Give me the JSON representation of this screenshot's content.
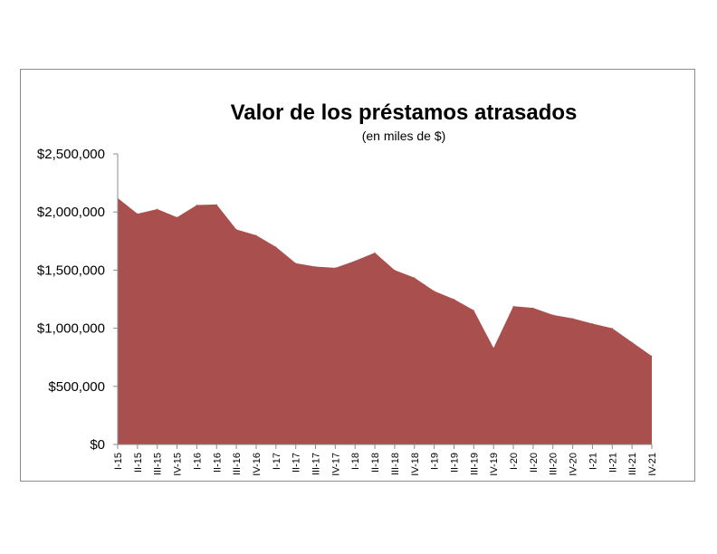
{
  "chart_data": {
    "type": "area",
    "title": "Valor de los préstamos atrasados",
    "subtitle": "(en miles de $)",
    "xlabel": "",
    "ylabel": "",
    "ylim": [
      0,
      2500000
    ],
    "y_ticks": [
      {
        "value": 0,
        "label": "$0"
      },
      {
        "value": 500000,
        "label": "$500,000"
      },
      {
        "value": 1000000,
        "label": "$1,000,000"
      },
      {
        "value": 1500000,
        "label": "$1,500,000"
      },
      {
        "value": 2000000,
        "label": "$2,000,000"
      },
      {
        "value": 2500000,
        "label": "$2,500,000"
      }
    ],
    "grid": false,
    "legend": "none",
    "color": "#a9504f",
    "categories": [
      "I-15",
      "II-15",
      "III-15",
      "IV-15",
      "I-16",
      "II-16",
      "III-16",
      "IV-16",
      "I-17",
      "II-17",
      "III-17",
      "IV-17",
      "I-18",
      "II-18",
      "III-18",
      "IV-18",
      "I-19",
      "II-19",
      "III-19",
      "IV-19",
      "I-20",
      "II-20",
      "III-20",
      "IV-20",
      "I-21",
      "II-21",
      "III-21",
      "IV-21"
    ],
    "values": [
      2120000,
      1985000,
      2025000,
      1955000,
      2060000,
      2065000,
      1850000,
      1800000,
      1700000,
      1560000,
      1530000,
      1520000,
      1580000,
      1650000,
      1500000,
      1435000,
      1320000,
      1250000,
      1155000,
      830000,
      1190000,
      1175000,
      1115000,
      1085000,
      1040000,
      1000000,
      880000,
      760000
    ]
  }
}
